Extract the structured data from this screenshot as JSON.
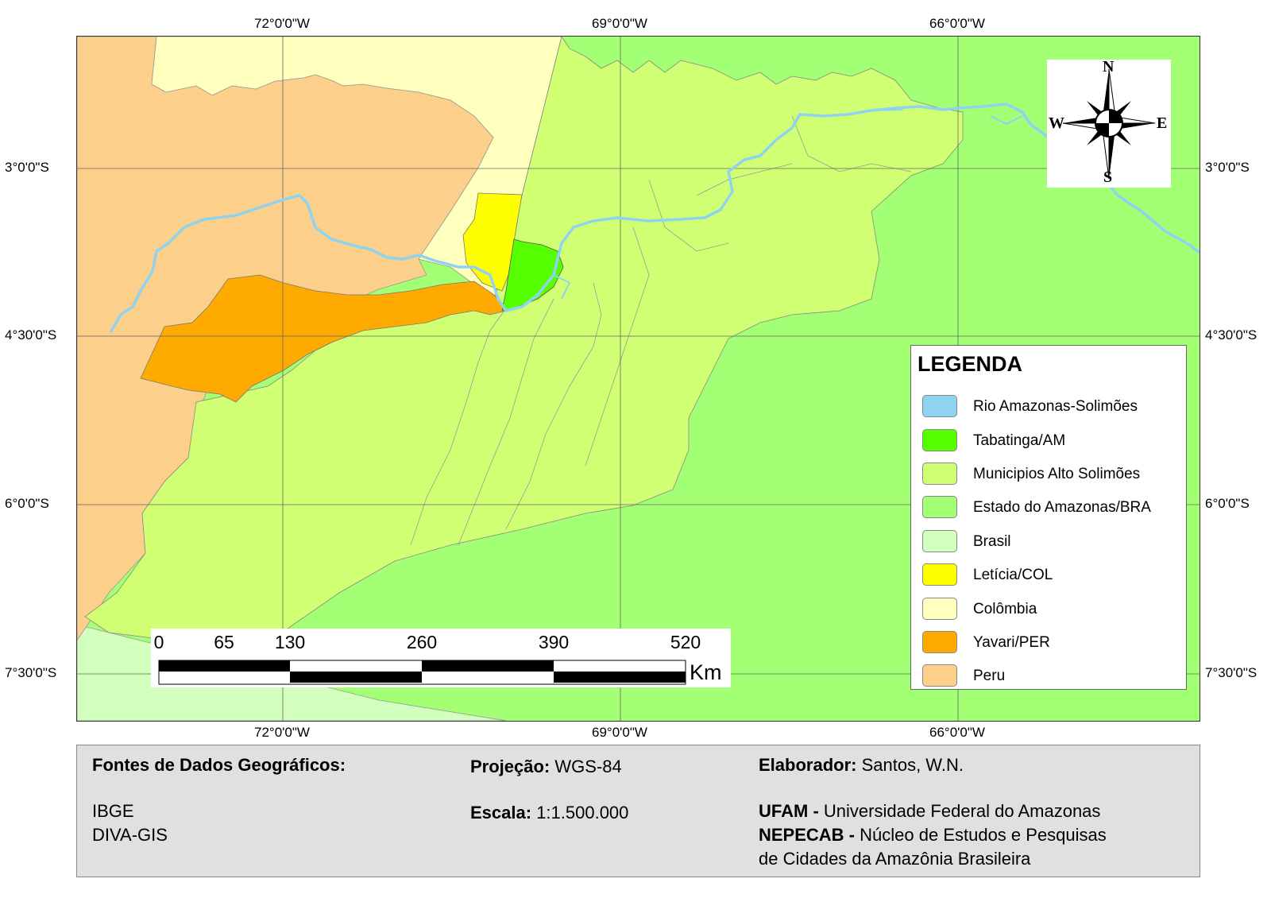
{
  "map": {
    "longitude_labels": [
      "72°0'0\"W",
      "69°0'0\"W",
      "66°0'0\"W"
    ],
    "latitude_labels": [
      "3°0'0\"S",
      "4°30'0\"S",
      "6°0'0\"S",
      "7°30'0\"S"
    ],
    "colors": {
      "rio": "#8fd3f0",
      "tabatinga": "#55ff00",
      "municipios": "#d1ff73",
      "amazonas": "#a3ff73",
      "brasil": "#d3ffbe",
      "leticia": "#ffff00",
      "colombia": "#ffffbe",
      "yavari": "#ffaa00",
      "peru": "#fcd08a"
    }
  },
  "legend": {
    "title": "LEGENDA",
    "items": [
      {
        "label": "Rio Amazonas-Solimões",
        "color": "#8fd3f0"
      },
      {
        "label": "Tabatinga/AM",
        "color": "#55ff00"
      },
      {
        "label": "Municipios Alto Solimões",
        "color": "#d1ff73"
      },
      {
        "label": "Estado do Amazonas/BRA",
        "color": "#a3ff73"
      },
      {
        "label": "Brasil",
        "color": "#d3ffbe"
      },
      {
        "label": "Letícia/COL",
        "color": "#ffff00"
      },
      {
        "label": "Colômbia",
        "color": "#ffffbe"
      },
      {
        "label": "Yavari/PER",
        "color": "#ffaa00"
      },
      {
        "label": "Peru",
        "color": "#fcd08a"
      }
    ]
  },
  "compass": {
    "n": "N",
    "s": "S",
    "e": "E",
    "w": "W"
  },
  "scalebar": {
    "ticks": [
      "0",
      "65",
      "130",
      "260",
      "390",
      "520"
    ],
    "unit": "Km"
  },
  "info": {
    "sources_label": "Fontes de Dados Geográficos:",
    "sources": [
      "IBGE",
      "DIVA-GIS"
    ],
    "projection_label": "Projeção:",
    "projection_value": "WGS-84",
    "scale_label": "Escala:",
    "scale_value": "1:1.500.000",
    "author_label": "Elaborador:",
    "author_value": "Santos, W.N.",
    "ufam_label": "UFAM -",
    "ufam_value": "Universidade Federal do Amazonas",
    "nepecab_label": "NEPECAB -",
    "nepecab_value_1": "Núcleo de Estudos e Pesquisas",
    "nepecab_value_2": "de Cidades da Amazônia Brasileira"
  }
}
